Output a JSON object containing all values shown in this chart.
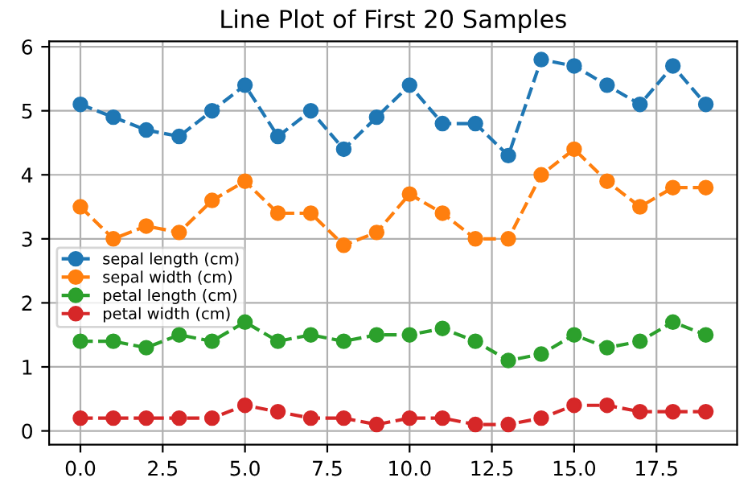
{
  "chart_data": {
    "type": "line",
    "title": "Line Plot of First 20 Samples",
    "x": [
      0,
      1,
      2,
      3,
      4,
      5,
      6,
      7,
      8,
      9,
      10,
      11,
      12,
      13,
      14,
      15,
      16,
      17,
      18,
      19
    ],
    "series": [
      {
        "name": "sepal length (cm)",
        "color": "#1f77b4",
        "values": [
          5.1,
          4.9,
          4.7,
          4.6,
          5.0,
          5.4,
          4.6,
          5.0,
          4.4,
          4.9,
          5.4,
          4.8,
          4.8,
          4.3,
          5.8,
          5.7,
          5.4,
          5.1,
          5.7,
          5.1
        ]
      },
      {
        "name": "sepal width (cm)",
        "color": "#ff7f0e",
        "values": [
          3.5,
          3.0,
          3.2,
          3.1,
          3.6,
          3.9,
          3.4,
          3.4,
          2.9,
          3.1,
          3.7,
          3.4,
          3.0,
          3.0,
          4.0,
          4.4,
          3.9,
          3.5,
          3.8,
          3.8
        ]
      },
      {
        "name": "petal length (cm)",
        "color": "#2ca02c",
        "values": [
          1.4,
          1.4,
          1.3,
          1.5,
          1.4,
          1.7,
          1.4,
          1.5,
          1.4,
          1.5,
          1.5,
          1.6,
          1.4,
          1.1,
          1.2,
          1.5,
          1.3,
          1.4,
          1.7,
          1.5
        ]
      },
      {
        "name": "petal width (cm)",
        "color": "#d62728",
        "values": [
          0.2,
          0.2,
          0.2,
          0.2,
          0.2,
          0.4,
          0.3,
          0.2,
          0.2,
          0.1,
          0.2,
          0.2,
          0.1,
          0.1,
          0.2,
          0.4,
          0.4,
          0.3,
          0.3,
          0.3
        ]
      }
    ],
    "xlim": [
      -0.95,
      19.95
    ],
    "ylim": [
      -0.215,
      6.085
    ],
    "xticks": [
      {
        "value": 0,
        "label": "0.0"
      },
      {
        "value": 2.5,
        "label": "2.5"
      },
      {
        "value": 5,
        "label": "5.0"
      },
      {
        "value": 7.5,
        "label": "7.5"
      },
      {
        "value": 10,
        "label": "10.0"
      },
      {
        "value": 12.5,
        "label": "12.5"
      },
      {
        "value": 15,
        "label": "15.0"
      },
      {
        "value": 17.5,
        "label": "17.5"
      }
    ],
    "yticks": [
      0,
      1,
      2,
      3,
      4,
      5,
      6
    ],
    "grid": true,
    "legend": "left",
    "marker": "circle",
    "line_style": "dashed"
  }
}
